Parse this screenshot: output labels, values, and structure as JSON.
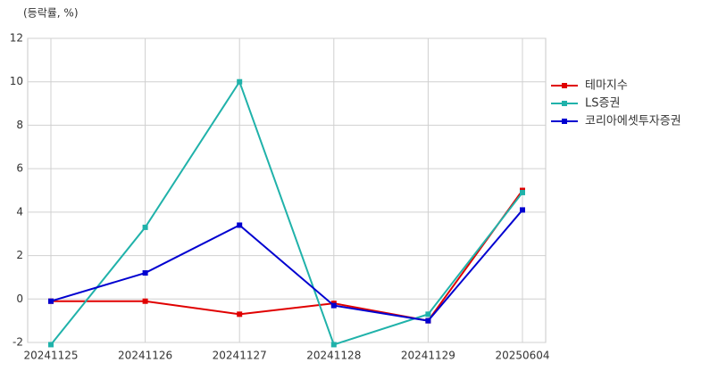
{
  "chart_data": {
    "type": "line",
    "y_label": "(등락률, %)",
    "categories": [
      "20241125",
      "20241126",
      "20241127",
      "20241128",
      "20241129",
      "20250604"
    ],
    "series": [
      {
        "name": "테마지수",
        "color": "#e00000",
        "values": [
          -0.1,
          -0.1,
          -0.7,
          -0.2,
          -1.0,
          5.0
        ]
      },
      {
        "name": "LS증권",
        "color": "#20b2aa",
        "values": [
          -2.1,
          3.3,
          10.0,
          -2.1,
          -0.7,
          4.9
        ]
      },
      {
        "name": "코리아에셋투자증권",
        "color": "#0000d0",
        "values": [
          -0.1,
          1.2,
          3.4,
          -0.3,
          -1.0,
          4.1
        ]
      }
    ],
    "ylim": [
      -2,
      12
    ],
    "yticks": [
      -2,
      0,
      2,
      4,
      6,
      8,
      10,
      12
    ],
    "grid": true,
    "legend": "right"
  }
}
